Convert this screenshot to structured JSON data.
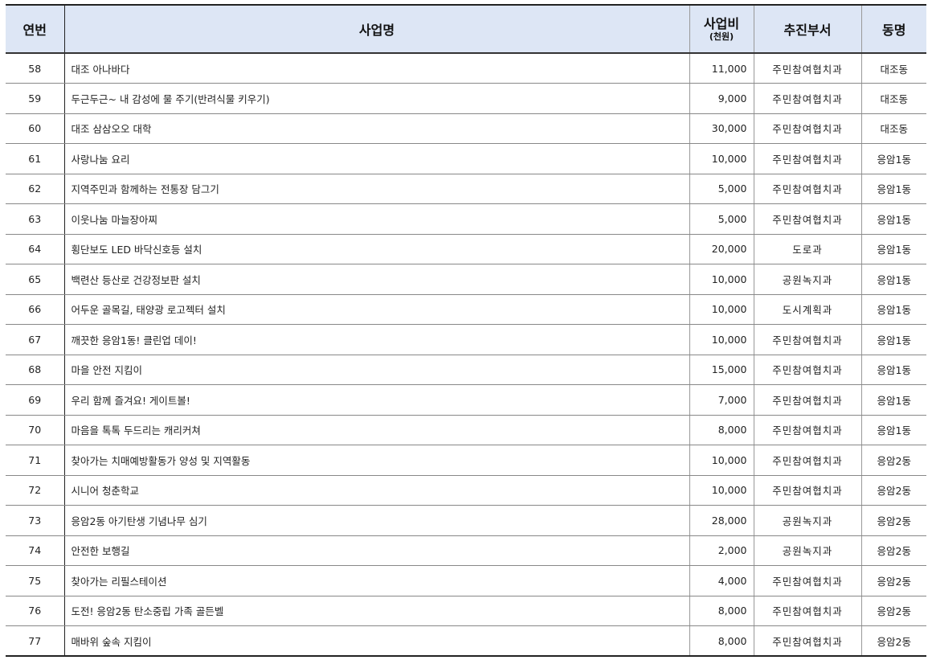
{
  "header": {
    "no": "연번",
    "name": "사업명",
    "cost": "사업비",
    "cost_unit": "(천원)",
    "dept": "추진부서",
    "dong": "동명"
  },
  "colors": {
    "header_bg": "#dde6f5"
  },
  "rows": [
    {
      "no": "58",
      "name": "대조 아나바다",
      "cost": "11,000",
      "dept": "주민참여협치과",
      "dong": "대조동"
    },
    {
      "no": "59",
      "name": "두근두근~ 내 감성에 물 주기(반려식물 키우기)",
      "cost": "9,000",
      "dept": "주민참여협치과",
      "dong": "대조동"
    },
    {
      "no": "60",
      "name": "대조 삼삼오오 대학",
      "cost": "30,000",
      "dept": "주민참여협치과",
      "dong": "대조동"
    },
    {
      "no": "61",
      "name": "사랑나눔 요리",
      "cost": "10,000",
      "dept": "주민참여협치과",
      "dong": "응암1동"
    },
    {
      "no": "62",
      "name": "지역주민과 함께하는 전통장 담그기",
      "cost": "5,000",
      "dept": "주민참여협치과",
      "dong": "응암1동"
    },
    {
      "no": "63",
      "name": "이웃나눔 마늘장아찌",
      "cost": "5,000",
      "dept": "주민참여협치과",
      "dong": "응암1동"
    },
    {
      "no": "64",
      "name": "횡단보도 LED 바닥신호등 설치",
      "cost": "20,000",
      "dept": "도로과",
      "dong": "응암1동"
    },
    {
      "no": "65",
      "name": "백련산 등산로 건강정보판 설치",
      "cost": "10,000",
      "dept": "공원녹지과",
      "dong": "응암1동"
    },
    {
      "no": "66",
      "name": "어두운 골목길, 태양광 로고젝터 설치",
      "cost": "10,000",
      "dept": "도시계획과",
      "dong": "응암1동"
    },
    {
      "no": "67",
      "name": "깨끗한 응암1동! 클린업 데이!",
      "cost": "10,000",
      "dept": "주민참여협치과",
      "dong": "응암1동"
    },
    {
      "no": "68",
      "name": "마을 안전 지킴이",
      "cost": "15,000",
      "dept": "주민참여협치과",
      "dong": "응암1동"
    },
    {
      "no": "69",
      "name": "우리 함께 즐겨요! 게이트볼!",
      "cost": "7,000",
      "dept": "주민참여협치과",
      "dong": "응암1동"
    },
    {
      "no": "70",
      "name": "마음을 톡톡 두드리는 캐리커쳐",
      "cost": "8,000",
      "dept": "주민참여협치과",
      "dong": "응암1동"
    },
    {
      "no": "71",
      "name": "찾아가는 치매예방활동가 양성 및 지역활동",
      "cost": "10,000",
      "dept": "주민참여협치과",
      "dong": "응암2동"
    },
    {
      "no": "72",
      "name": "시니어 청춘학교",
      "cost": "10,000",
      "dept": "주민참여협치과",
      "dong": "응암2동"
    },
    {
      "no": "73",
      "name": "응암2동 아기탄생 기념나무 심기",
      "cost": "28,000",
      "dept": "공원녹지과",
      "dong": "응암2동"
    },
    {
      "no": "74",
      "name": "안전한 보행길",
      "cost": "2,000",
      "dept": "공원녹지과",
      "dong": "응암2동"
    },
    {
      "no": "75",
      "name": "찾아가는 리필스테이션",
      "cost": "4,000",
      "dept": "주민참여협치과",
      "dong": "응암2동"
    },
    {
      "no": "76",
      "name": "도전! 응암2동 탄소중립 가족 골든벨",
      "cost": "8,000",
      "dept": "주민참여협치과",
      "dong": "응암2동"
    },
    {
      "no": "77",
      "name": "매바위 숲속 지킴이",
      "cost": "8,000",
      "dept": "주민참여협치과",
      "dong": "응암2동"
    }
  ]
}
